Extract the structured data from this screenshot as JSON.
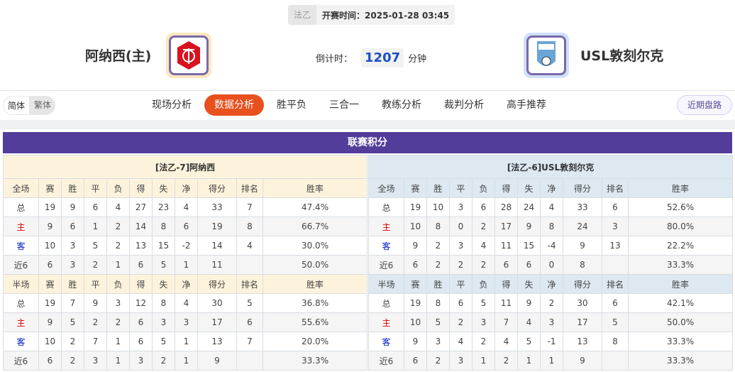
{
  "header": {
    "league": "法乙",
    "kickoff": "开赛时间：2025-01-28 03:45",
    "home_team": "阿纳西(主)",
    "away_team": "USL敦刻尔克",
    "countdown_label": "倒计时：",
    "countdown_value": "1207",
    "countdown_unit": "分钟"
  },
  "nav": {
    "lang": [
      "简体",
      "繁体"
    ],
    "tabs": [
      "现场分析",
      "数据分析",
      "胜平负",
      "三合一",
      "教练分析",
      "裁判分析",
      "高手推荐"
    ],
    "active_tab": "数据分析",
    "recent": "近期盘路"
  },
  "standings": {
    "title": "联赛积分",
    "cols_full": [
      "全场",
      "赛",
      "胜",
      "平",
      "负",
      "得",
      "失",
      "净",
      "得分",
      "排名",
      "胜率"
    ],
    "cols_half": [
      "半场",
      "赛",
      "胜",
      "平",
      "负",
      "得",
      "失",
      "净",
      "得分",
      "排名",
      "胜率"
    ],
    "home": {
      "title": "[法乙-7]阿纳西",
      "full": [
        [
          "总",
          "19",
          "9",
          "6",
          "4",
          "27",
          "23",
          "4",
          "33",
          "7",
          "47.4%"
        ],
        [
          "主",
          "9",
          "6",
          "1",
          "2",
          "14",
          "8",
          "6",
          "19",
          "8",
          "66.7%"
        ],
        [
          "客",
          "10",
          "3",
          "5",
          "2",
          "13",
          "15",
          "-2",
          "14",
          "4",
          "30.0%"
        ],
        [
          "近6",
          "6",
          "3",
          "2",
          "1",
          "6",
          "5",
          "1",
          "11",
          "",
          "50.0%"
        ]
      ],
      "half": [
        [
          "总",
          "19",
          "7",
          "9",
          "3",
          "12",
          "8",
          "4",
          "30",
          "5",
          "36.8%"
        ],
        [
          "主",
          "9",
          "5",
          "2",
          "2",
          "6",
          "3",
          "3",
          "17",
          "6",
          "55.6%"
        ],
        [
          "客",
          "10",
          "2",
          "7",
          "1",
          "6",
          "5",
          "1",
          "13",
          "7",
          "20.0%"
        ],
        [
          "近6",
          "6",
          "2",
          "3",
          "1",
          "3",
          "2",
          "1",
          "9",
          "",
          "33.3%"
        ]
      ]
    },
    "away": {
      "title": "[法乙-6]USL敦刻尔克",
      "full": [
        [
          "总",
          "19",
          "10",
          "3",
          "6",
          "28",
          "24",
          "4",
          "33",
          "6",
          "52.6%"
        ],
        [
          "主",
          "10",
          "8",
          "0",
          "2",
          "17",
          "9",
          "8",
          "24",
          "3",
          "80.0%"
        ],
        [
          "客",
          "9",
          "2",
          "3",
          "4",
          "11",
          "15",
          "-4",
          "9",
          "13",
          "22.2%"
        ],
        [
          "近6",
          "6",
          "2",
          "2",
          "2",
          "6",
          "6",
          "0",
          "8",
          "",
          "33.3%"
        ]
      ],
      "half": [
        [
          "总",
          "19",
          "8",
          "6",
          "5",
          "11",
          "9",
          "2",
          "30",
          "6",
          "42.1%"
        ],
        [
          "主",
          "10",
          "5",
          "2",
          "3",
          "7",
          "4",
          "3",
          "17",
          "5",
          "50.0%"
        ],
        [
          "客",
          "9",
          "3",
          "4",
          "2",
          "4",
          "5",
          "-1",
          "13",
          "8",
          "33.3%"
        ],
        [
          "近6",
          "6",
          "2",
          "3",
          "1",
          "2",
          "1",
          "1",
          "9",
          "",
          "33.3%"
        ]
      ]
    }
  },
  "colors": {
    "banner": "#523d9a",
    "active_tab": "#e8501e",
    "home_red": "#dd0000",
    "away_blue": "#0018c8"
  }
}
